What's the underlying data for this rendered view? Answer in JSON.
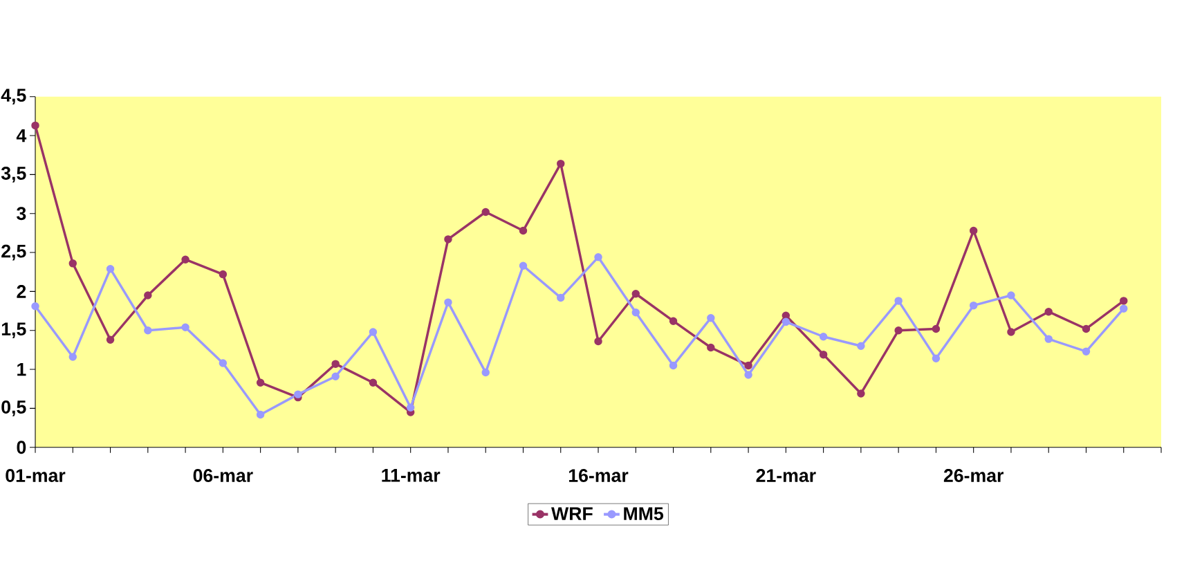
{
  "chart_data": {
    "type": "line",
    "categories": [
      "01-mar",
      null,
      null,
      null,
      null,
      "06-mar",
      null,
      null,
      null,
      null,
      "11-mar",
      null,
      null,
      null,
      null,
      "16-mar",
      null,
      null,
      null,
      null,
      "21-mar",
      null,
      null,
      null,
      null,
      "26-mar",
      null,
      null,
      null,
      null
    ],
    "series": [
      {
        "name": "WRF",
        "color": "#993366",
        "values": [
          4.13,
          2.36,
          1.38,
          1.95,
          2.41,
          2.22,
          0.83,
          0.64,
          1.07,
          0.83,
          0.45,
          2.67,
          3.02,
          2.78,
          3.64,
          1.36,
          1.97,
          1.62,
          1.28,
          1.05,
          1.69,
          1.19,
          0.69,
          1.5,
          1.52,
          2.78,
          1.48,
          1.74,
          1.52,
          1.88
        ]
      },
      {
        "name": "MM5",
        "color": "#9999ff",
        "values": [
          1.81,
          1.16,
          2.29,
          1.5,
          1.54,
          1.08,
          0.42,
          0.68,
          0.91,
          1.48,
          0.51,
          1.86,
          0.96,
          2.33,
          1.92,
          2.44,
          1.73,
          1.05,
          1.66,
          0.93,
          1.61,
          1.42,
          1.3,
          1.88,
          1.14,
          1.82,
          1.95,
          1.39,
          1.23,
          1.78
        ]
      }
    ],
    "ylim": [
      0,
      4.5
    ],
    "yticks": [
      0,
      {
        "value": 0.5,
        "label": "0,5"
      },
      1,
      {
        "value": 1.5,
        "label": "1,5"
      },
      2,
      {
        "value": 2.5,
        "label": "2,5"
      },
      3,
      {
        "value": 3.5,
        "label": "3,5"
      },
      4,
      {
        "value": 4.5,
        "label": "4,5"
      }
    ],
    "grid": false,
    "legend": "bottom",
    "marker": "circle",
    "line_style": "solid"
  }
}
